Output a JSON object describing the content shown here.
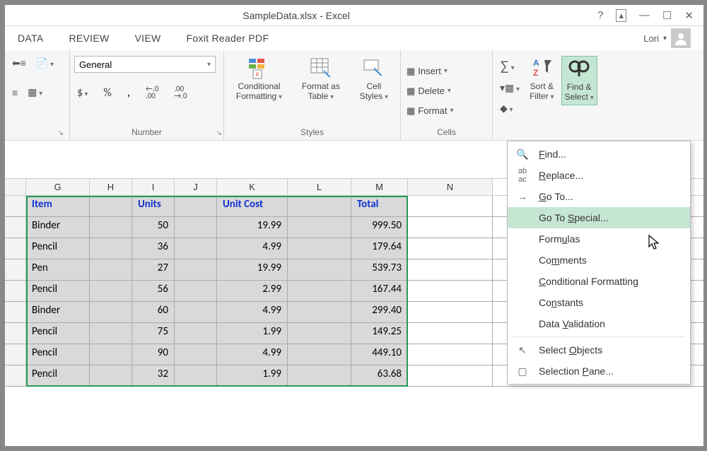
{
  "colors": {
    "accent_green": "#269957",
    "highlight_green": "#c6e6d4",
    "header_blue": "#1030d0",
    "selection_bg": "#d9d9d9"
  },
  "window": {
    "title": "SampleData.xlsx - Excel"
  },
  "user": {
    "name": "Lori"
  },
  "tabs": {
    "data": "DATA",
    "review": "REVIEW",
    "view": "VIEW",
    "foxit": "Foxit Reader PDF"
  },
  "ribbon": {
    "number": {
      "label": "Number",
      "format_value": "General",
      "currency": "$",
      "percent": "%",
      "comma": ",",
      "inc_dec": "←.0\n.00",
      "dec_dec": ".00\n→.0"
    },
    "styles": {
      "label": "Styles",
      "cond_fmt": "Conditional\nFormatting",
      "fmt_table": "Format as\nTable",
      "cell_styles": "Cell\nStyles"
    },
    "cells": {
      "label": "Cells",
      "insert": "Insert",
      "delete": "Delete",
      "format": "Format"
    },
    "editing": {
      "sort_filter": "Sort &\nFilter",
      "find_select": "Find &\nSelect"
    }
  },
  "sheet": {
    "col_widths": {
      "spacer": 30,
      "G": 90,
      "H": 60,
      "I": 60,
      "J": 60,
      "K": 100,
      "L": 90,
      "M": 80,
      "N": 120
    },
    "columns": [
      "G",
      "H",
      "I",
      "J",
      "K",
      "L",
      "M",
      "N"
    ],
    "headers": {
      "G": "Item",
      "I": "Units",
      "K": "Unit Cost",
      "M": "Total"
    },
    "rows": [
      {
        "G": "Binder",
        "I": "50",
        "K": "19.99",
        "M": "999.50"
      },
      {
        "G": "Pencil",
        "I": "36",
        "K": "4.99",
        "M": "179.64"
      },
      {
        "G": "Pen",
        "I": "27",
        "K": "19.99",
        "M": "539.73"
      },
      {
        "G": "Pencil",
        "I": "56",
        "K": "2.99",
        "M": "167.44"
      },
      {
        "G": "Binder",
        "I": "60",
        "K": "4.99",
        "M": "299.40"
      },
      {
        "G": "Pencil",
        "I": "75",
        "K": "1.99",
        "M": "149.25"
      },
      {
        "G": "Pencil",
        "I": "90",
        "K": "4.99",
        "M": "449.10"
      },
      {
        "G": "Pencil",
        "I": "32",
        "K": "1.99",
        "M": "63.68"
      }
    ]
  },
  "menu": {
    "find": "Find...",
    "replace": "Replace...",
    "goto": "Go To...",
    "goto_special": "Go To Special...",
    "formulas": "Formulas",
    "comments": "Comments",
    "cond_fmt": "Conditional Formatting",
    "constants": "Constants",
    "data_val": "Data Validation",
    "sel_obj": "Select Objects",
    "sel_pane": "Selection Pane..."
  }
}
